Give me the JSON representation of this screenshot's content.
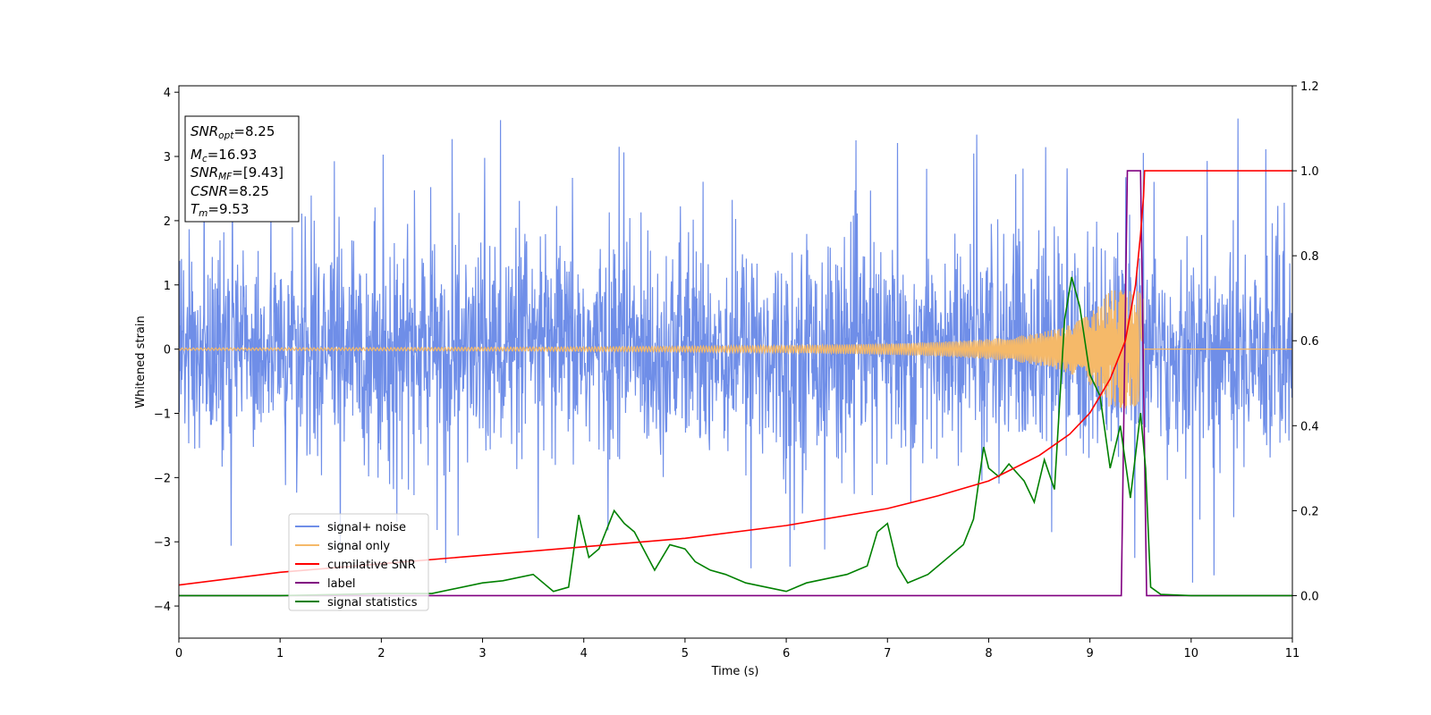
{
  "chart_data": {
    "type": "line",
    "xlabel": "Time (s)",
    "ylabel": "Whitened strain",
    "xlim": [
      0,
      11
    ],
    "ylim": [
      -4.5,
      4.1
    ],
    "y2lim": [
      -0.1,
      1.2
    ],
    "x_ticks": [
      0,
      1,
      2,
      3,
      4,
      5,
      6,
      7,
      8,
      9,
      10,
      11
    ],
    "x_tick_labels": [
      "0",
      "1",
      "2",
      "3",
      "4",
      "5",
      "6",
      "7",
      "8",
      "9",
      "10",
      "11"
    ],
    "y_ticks": [
      -4,
      -3,
      -2,
      -1,
      0,
      1,
      2,
      3,
      4
    ],
    "y_tick_labels": [
      "−4",
      "−3",
      "−2",
      "−1",
      "0",
      "1",
      "2",
      "3",
      "4"
    ],
    "y2_ticks": [
      0.0,
      0.2,
      0.4,
      0.6,
      0.8,
      1.0,
      1.2
    ],
    "y2_tick_labels": [
      "0.0",
      "0.2",
      "0.4",
      "0.6",
      "0.8",
      "1.0",
      "1.2"
    ],
    "grid": false,
    "legend_position": "lower-left",
    "annotation": {
      "lines": [
        {
          "base": "SNR",
          "sub": "opt",
          "rest": "=8.25"
        },
        {
          "base": "M",
          "sub": "c",
          "rest": "=16.93"
        },
        {
          "base": "SNR",
          "sub": "MF",
          "rest": "=[9.43]"
        },
        {
          "base": "CSNR",
          "sub": "",
          "rest": "=8.25"
        },
        {
          "base": "T",
          "sub": "m",
          "rest": "=9.53"
        }
      ]
    },
    "series": [
      {
        "name": "signal+ noise",
        "color": "#6f8ee8",
        "axis": "left",
        "description_kind": "noise",
        "noise_std": 0.85,
        "spike_max": 3.7,
        "spike_min": -4.15,
        "x_range": [
          0,
          11
        ]
      },
      {
        "name": "signal only",
        "color": "#f5b969",
        "axis": "left",
        "description_kind": "chirp",
        "merger_time": 9.53,
        "peak_amplitude": 0.92
      },
      {
        "name": "cumilative SNR",
        "color": "#ff0000",
        "axis": "right",
        "x": [
          0,
          1,
          2,
          3,
          4,
          5,
          6,
          7,
          7.5,
          8,
          8.5,
          8.8,
          9.0,
          9.2,
          9.35,
          9.45,
          9.5,
          9.53,
          9.54,
          11
        ],
        "y": [
          0.025,
          0.055,
          0.075,
          0.095,
          0.115,
          0.135,
          0.165,
          0.205,
          0.235,
          0.27,
          0.33,
          0.38,
          0.43,
          0.51,
          0.6,
          0.73,
          0.85,
          0.94,
          1.0,
          1.0
        ]
      },
      {
        "name": "label",
        "color": "#800080",
        "axis": "right",
        "x": [
          0,
          9.31,
          9.37,
          9.5,
          9.56,
          11
        ],
        "y": [
          0,
          0,
          1,
          1,
          0,
          0
        ]
      },
      {
        "name": "signal statistics",
        "color": "#008000",
        "axis": "right",
        "x": [
          0,
          1,
          2,
          2.5,
          3,
          3.2,
          3.5,
          3.7,
          3.85,
          3.95,
          4.05,
          4.15,
          4.3,
          4.4,
          4.5,
          4.7,
          4.85,
          5.0,
          5.1,
          5.25,
          5.4,
          5.6,
          5.8,
          6.0,
          6.2,
          6.4,
          6.6,
          6.8,
          6.9,
          7.0,
          7.1,
          7.2,
          7.4,
          7.6,
          7.75,
          7.85,
          7.95,
          8.0,
          8.1,
          8.2,
          8.35,
          8.45,
          8.55,
          8.65,
          8.75,
          8.82,
          8.9,
          9.0,
          9.1,
          9.2,
          9.3,
          9.4,
          9.5,
          9.55,
          9.6,
          9.7,
          10,
          11
        ],
        "y": [
          0,
          0,
          0.005,
          0.005,
          0.03,
          0.035,
          0.05,
          0.01,
          0.02,
          0.19,
          0.09,
          0.11,
          0.2,
          0.17,
          0.15,
          0.06,
          0.12,
          0.11,
          0.08,
          0.06,
          0.05,
          0.03,
          0.02,
          0.01,
          0.03,
          0.04,
          0.05,
          0.07,
          0.15,
          0.17,
          0.07,
          0.03,
          0.05,
          0.09,
          0.12,
          0.18,
          0.35,
          0.3,
          0.28,
          0.31,
          0.27,
          0.22,
          0.32,
          0.25,
          0.65,
          0.75,
          0.68,
          0.52,
          0.47,
          0.3,
          0.4,
          0.23,
          0.43,
          0.3,
          0.02,
          0.003,
          0,
          0
        ]
      }
    ]
  }
}
